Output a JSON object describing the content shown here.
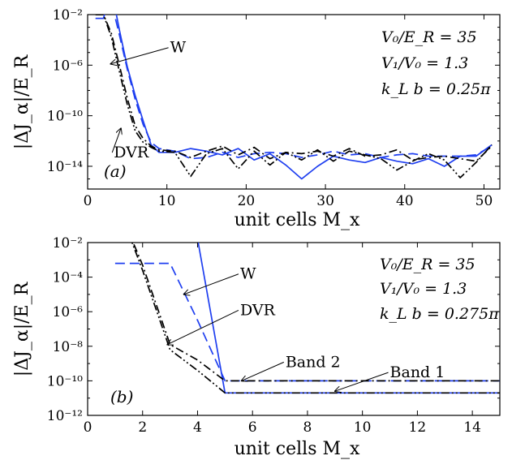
{
  "chart_data": [
    {
      "type": "line",
      "panel_tag": "(a)",
      "xlabel": "unit cells  M_x",
      "ylabel": "|ΔJ_α|/E_R",
      "xlim": [
        0,
        52
      ],
      "ylim_exp": [
        -15.8,
        -2
      ],
      "y_scale": "log",
      "x_ticks": [
        0,
        10,
        20,
        30,
        40,
        50
      ],
      "y_ticks": [
        {
          "exp": -2,
          "label": "10⁻²"
        },
        {
          "exp": -6,
          "label": "10⁻⁶"
        },
        {
          "exp": -10,
          "label": "10⁻¹⁰"
        },
        {
          "exp": -14,
          "label": "10⁻¹⁴"
        }
      ],
      "params": [
        "V₀/E_R = 35",
        "V₁/V₀ = 1.3",
        "k_L b = 0.25π"
      ],
      "annotations": [
        {
          "text": "W",
          "arrow_to": [
            2.9,
            -5.9
          ],
          "text_at": [
            10.4,
            -5.0
          ]
        },
        {
          "text": "DVR",
          "arrow_to": [
            4.2,
            -11.0
          ],
          "text_at": [
            3.3,
            -13.3
          ]
        }
      ],
      "series": [
        {
          "color": "#1f3ff0",
          "style": "solid",
          "x": [
            1,
            2,
            3,
            4,
            5,
            6,
            7,
            8,
            9,
            11,
            13,
            15,
            17,
            19,
            21,
            23,
            25,
            27,
            29,
            31,
            33,
            35,
            37,
            39,
            41,
            43,
            45,
            47,
            49,
            51
          ],
          "y": [
            -2.3,
            -2.3,
            0.0,
            -3.2,
            -6.1,
            -8.4,
            -10.4,
            -12.3,
            -12.9,
            -12.9,
            -12.6,
            -12.8,
            -13.1,
            -12.6,
            -13.5,
            -13.0,
            -13.9,
            -15.0,
            -14.0,
            -13.2,
            -13.5,
            -13.7,
            -13.3,
            -13.6,
            -13.8,
            -13.4,
            -14.0,
            -13.2,
            -13.2,
            -12.3
          ]
        },
        {
          "color": "#1f3ff0",
          "style": "dashed",
          "x": [
            1,
            2,
            3,
            4,
            5,
            6,
            7,
            8,
            9,
            11,
            13,
            15,
            17,
            19,
            21,
            23,
            25,
            27,
            29,
            31,
            33,
            35,
            37,
            39,
            41,
            43,
            45,
            47,
            49,
            51
          ],
          "y": [
            -2.3,
            -2.3,
            -1.0,
            -3.6,
            -6.3,
            -8.7,
            -10.7,
            -12.1,
            -12.6,
            -12.8,
            -13.4,
            -13.3,
            -12.9,
            -13.3,
            -13.0,
            -12.9,
            -13.0,
            -13.3,
            -13.1,
            -12.8,
            -13.1,
            -13.0,
            -13.3,
            -13.1,
            -13.0,
            -13.2,
            -13.2,
            -13.2,
            -13.1,
            -12.4
          ]
        },
        {
          "color": "#000000",
          "style": "dashdot",
          "x": [
            1,
            2,
            3,
            4,
            5,
            6,
            7,
            8,
            9,
            11,
            13,
            15,
            17,
            19,
            21,
            23,
            25,
            27,
            29,
            31,
            33,
            35,
            37,
            39,
            41,
            43,
            45,
            47,
            49,
            51
          ],
          "y": [
            -2.0,
            -2.0,
            -3.5,
            -6.0,
            -8.6,
            -10.8,
            -11.8,
            -12.4,
            -12.7,
            -12.8,
            -13.3,
            -12.8,
            -12.4,
            -13.1,
            -12.5,
            -13.4,
            -12.9,
            -13.0,
            -12.8,
            -13.2,
            -12.6,
            -13.2,
            -13.1,
            -12.7,
            -13.5,
            -13.3,
            -13.2,
            -13.4,
            -13.6,
            -12.4
          ]
        },
        {
          "color": "#000000",
          "style": "dashdotdot",
          "x": [
            1,
            2,
            3,
            4,
            5,
            6,
            7,
            8,
            9,
            11,
            13,
            15,
            17,
            19,
            21,
            23,
            25,
            27,
            29,
            31,
            33,
            35,
            37,
            39,
            41,
            43,
            45,
            47,
            49,
            51
          ],
          "y": [
            -2.0,
            -2.0,
            -3.8,
            -6.5,
            -9.1,
            -11.2,
            -12.1,
            -12.5,
            -12.8,
            -12.9,
            -14.8,
            -13.0,
            -12.6,
            -14.2,
            -12.8,
            -13.9,
            -12.9,
            -13.5,
            -12.7,
            -13.6,
            -12.8,
            -13.1,
            -13.4,
            -14.3,
            -13.6,
            -13.0,
            -13.5,
            -14.9,
            -13.7,
            -12.3
          ]
        }
      ]
    },
    {
      "type": "line",
      "panel_tag": "(b)",
      "xlabel": "unit cells  M_x",
      "ylabel": "|ΔJ_α|/E_R",
      "xlim": [
        0,
        15
      ],
      "ylim_exp": [
        -12,
        -2
      ],
      "y_scale": "log",
      "x_ticks": [
        0,
        2,
        4,
        6,
        8,
        10,
        12,
        14
      ],
      "y_ticks": [
        {
          "exp": -2,
          "label": "10⁻²"
        },
        {
          "exp": -4,
          "label": "10⁻⁴"
        },
        {
          "exp": -6,
          "label": "10⁻⁶"
        },
        {
          "exp": -8,
          "label": "10⁻⁸"
        },
        {
          "exp": -10,
          "label": "10⁻¹⁰"
        },
        {
          "exp": -12,
          "label": "10⁻¹²"
        }
      ],
      "params": [
        "V₀/E_R = 35",
        "V₁/V₀ = 1.3",
        "k_L b = 0.275π"
      ],
      "annotations": [
        {
          "text": "W",
          "arrow_to": [
            3.5,
            -5.0
          ],
          "text_at": [
            5.55,
            -4.1
          ]
        },
        {
          "text": "DVR",
          "arrow_to": [
            2.9,
            -7.9
          ],
          "text_at": [
            5.55,
            -6.2
          ]
        },
        {
          "text": "Band 2",
          "arrow_to": [
            5.6,
            -10.0
          ],
          "text_at": [
            7.2,
            -9.2
          ]
        },
        {
          "text": "Band 1",
          "arrow_to": [
            9.0,
            -10.6
          ],
          "text_at": [
            11.0,
            -9.8
          ]
        }
      ],
      "series": [
        {
          "color": "#1f3ff0",
          "style": "solid",
          "x": [
            1,
            2,
            3,
            4,
            5,
            6,
            7,
            8,
            9,
            10,
            11,
            12,
            13,
            14,
            15
          ],
          "y": [
            1.0,
            0.0,
            -1.5,
            -1.8,
            -10.7,
            -10.7,
            -10.7,
            -10.7,
            -10.7,
            -10.7,
            -10.7,
            -10.7,
            -10.7,
            -10.7,
            -10.7
          ]
        },
        {
          "color": "#1f3ff0",
          "style": "dashed",
          "x": [
            1,
            2,
            3,
            4,
            5,
            6,
            7,
            8,
            9,
            10,
            11,
            12,
            13,
            14,
            15
          ],
          "y": [
            -3.2,
            -3.2,
            -3.2,
            -6.5,
            -10.0,
            -10.0,
            -10.0,
            -10.0,
            -10.0,
            -10.0,
            -10.0,
            -10.0,
            -10.0,
            -10.0,
            -10.0
          ]
        },
        {
          "color": "#000000",
          "style": "dashdot",
          "x": [
            1,
            2,
            3,
            4,
            5,
            6,
            7,
            8,
            9,
            10,
            11,
            12,
            13,
            14,
            15
          ],
          "y": [
            0.5,
            -3.3,
            -7.9,
            -8.8,
            -10.0,
            -10.0,
            -10.0,
            -10.0,
            -10.0,
            -10.0,
            -10.0,
            -10.0,
            -10.0,
            -10.0,
            -10.0
          ]
        },
        {
          "color": "#000000",
          "style": "dashdotdot",
          "x": [
            1,
            2,
            3,
            4,
            5,
            6,
            7,
            8,
            9,
            10,
            11,
            12,
            13,
            14,
            15
          ],
          "y": [
            0.6,
            -3.6,
            -8.2,
            -9.4,
            -10.7,
            -10.7,
            -10.7,
            -10.7,
            -10.7,
            -10.7,
            -10.7,
            -10.7,
            -10.7,
            -10.7,
            -10.7
          ]
        }
      ]
    }
  ]
}
